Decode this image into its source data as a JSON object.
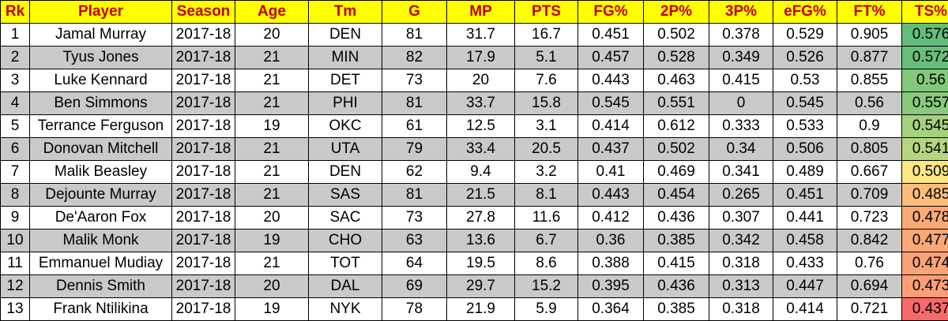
{
  "table": {
    "headers": [
      "Rk",
      "Player",
      "Season",
      "Age",
      "Tm",
      "G",
      "MP",
      "PTS",
      "FG%",
      "2P%",
      "3P%",
      "eFG%",
      "FT%",
      "TS%"
    ],
    "rows": [
      [
        "1",
        "Jamal Murray",
        "2017-18",
        "20",
        "DEN",
        "81",
        "31.7",
        "16.7",
        "0.451",
        "0.502",
        "0.378",
        "0.529",
        "0.905",
        "0.576"
      ],
      [
        "2",
        "Tyus Jones",
        "2017-18",
        "21",
        "MIN",
        "82",
        "17.9",
        "5.1",
        "0.457",
        "0.528",
        "0.349",
        "0.526",
        "0.877",
        "0.572"
      ],
      [
        "3",
        "Luke Kennard",
        "2017-18",
        "21",
        "DET",
        "73",
        "20",
        "7.6",
        "0.443",
        "0.463",
        "0.415",
        "0.53",
        "0.855",
        "0.56"
      ],
      [
        "4",
        "Ben Simmons",
        "2017-18",
        "21",
        "PHI",
        "81",
        "33.7",
        "15.8",
        "0.545",
        "0.551",
        "0",
        "0.545",
        "0.56",
        "0.557"
      ],
      [
        "5",
        "Terrance Ferguson",
        "2017-18",
        "19",
        "OKC",
        "61",
        "12.5",
        "3.1",
        "0.414",
        "0.612",
        "0.333",
        "0.533",
        "0.9",
        "0.545"
      ],
      [
        "6",
        "Donovan Mitchell",
        "2017-18",
        "21",
        "UTA",
        "79",
        "33.4",
        "20.5",
        "0.437",
        "0.502",
        "0.34",
        "0.506",
        "0.805",
        "0.541"
      ],
      [
        "7",
        "Malik Beasley",
        "2017-18",
        "21",
        "DEN",
        "62",
        "9.4",
        "3.2",
        "0.41",
        "0.469",
        "0.341",
        "0.489",
        "0.667",
        "0.509"
      ],
      [
        "8",
        "Dejounte Murray",
        "2017-18",
        "21",
        "SAS",
        "81",
        "21.5",
        "8.1",
        "0.443",
        "0.454",
        "0.265",
        "0.451",
        "0.709",
        "0.485"
      ],
      [
        "9",
        "De'Aaron Fox",
        "2017-18",
        "20",
        "SAC",
        "73",
        "27.8",
        "11.6",
        "0.412",
        "0.436",
        "0.307",
        "0.441",
        "0.723",
        "0.478"
      ],
      [
        "10",
        "Malik Monk",
        "2017-18",
        "19",
        "CHO",
        "63",
        "13.6",
        "6.7",
        "0.36",
        "0.385",
        "0.342",
        "0.458",
        "0.842",
        "0.477"
      ],
      [
        "11",
        "Emmanuel Mudiay",
        "2017-18",
        "21",
        "TOT",
        "64",
        "19.5",
        "8.6",
        "0.388",
        "0.415",
        "0.318",
        "0.433",
        "0.76",
        "0.474"
      ],
      [
        "12",
        "Dennis Smith",
        "2017-18",
        "20",
        "DAL",
        "69",
        "29.7",
        "15.2",
        "0.395",
        "0.436",
        "0.313",
        "0.447",
        "0.694",
        "0.473"
      ],
      [
        "13",
        "Frank Ntilikina",
        "2017-18",
        "19",
        "NYK",
        "78",
        "21.9",
        "5.9",
        "0.364",
        "0.385",
        "0.318",
        "0.414",
        "0.721",
        "0.437"
      ]
    ],
    "ts_colors": [
      "#63be7b",
      "#67bf7b",
      "#83c77c",
      "#89c97d",
      "#a6d17e",
      "#b5d67f",
      "#fee783",
      "#fcbd7b",
      "#fbaa77",
      "#fba877",
      "#fba276",
      "#fb9e75",
      "#f8696b"
    ],
    "colors": {
      "header_bg": "#ffff00",
      "header_text": "#c00000",
      "stripe": "#c9c9c9"
    }
  }
}
